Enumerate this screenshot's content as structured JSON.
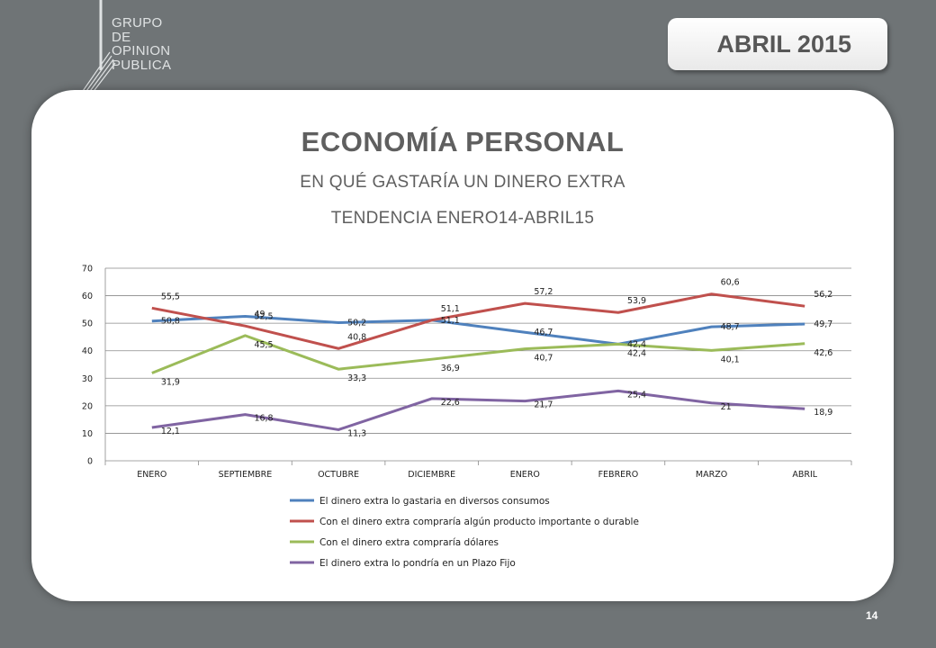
{
  "logo": {
    "lines": [
      "GRUPO",
      "DE",
      "OPINION",
      "PUBLICA"
    ]
  },
  "header": {
    "date": "ABRIL 2015"
  },
  "slide": {
    "title": "ECONOMÍA PERSONAL",
    "subtitle": "EN QUÉ GASTARÍA UN DINERO EXTRA",
    "subtitle2": "TENDENCIA ENERO14-ABRIL15",
    "page_number": "14"
  },
  "chart_data": {
    "type": "line",
    "categories": [
      "ENERO",
      "SEPTIEMBRE",
      "OCTUBRE",
      "DICIEMBRE",
      "ENERO",
      "FEBRERO",
      "MARZO",
      "ABRIL"
    ],
    "ylim": [
      0,
      70
    ],
    "yticks": [
      0,
      10,
      20,
      30,
      40,
      50,
      60,
      70
    ],
    "grid": true,
    "legend_position": "bottom",
    "series": [
      {
        "name": "El dinero extra lo gastaria en diversos consumos",
        "color": "#4f81bd",
        "values": [
          50.8,
          52.5,
          50.2,
          51.1,
          46.7,
          42.4,
          48.7,
          49.7
        ],
        "labels": [
          "50,8",
          "52,5",
          "50,2",
          "51,1",
          "46,7",
          "42,4",
          "48,7",
          "49,7"
        ]
      },
      {
        "name": "Con el dinero extra compraría algún producto importante o durable",
        "color": "#c0504d",
        "values": [
          55.5,
          49,
          40.8,
          51.1,
          57.2,
          53.9,
          60.6,
          56.2
        ],
        "labels": [
          "55,5",
          "49",
          "40,8",
          "51,1",
          "57,2",
          "53,9",
          "60,6",
          "56,2"
        ]
      },
      {
        "name": "Con el dinero extra compraría dólares",
        "color": "#9bbb59",
        "values": [
          31.9,
          45.5,
          33.3,
          36.9,
          40.7,
          42.4,
          40.1,
          42.6
        ],
        "labels": [
          "31,9",
          "45,5",
          "33,3",
          "36,9",
          "40,7",
          "42,4",
          "40,1",
          "42,6"
        ]
      },
      {
        "name": "El dinero extra lo pondría en un Plazo Fijo",
        "color": "#8064a2",
        "values": [
          12.1,
          16.8,
          11.3,
          22.6,
          21.7,
          25.4,
          21,
          18.9
        ],
        "labels": [
          "12,1",
          "16,8",
          "11,3",
          "22,6",
          "21,7",
          "25,4",
          "21",
          "18,9"
        ]
      }
    ]
  }
}
